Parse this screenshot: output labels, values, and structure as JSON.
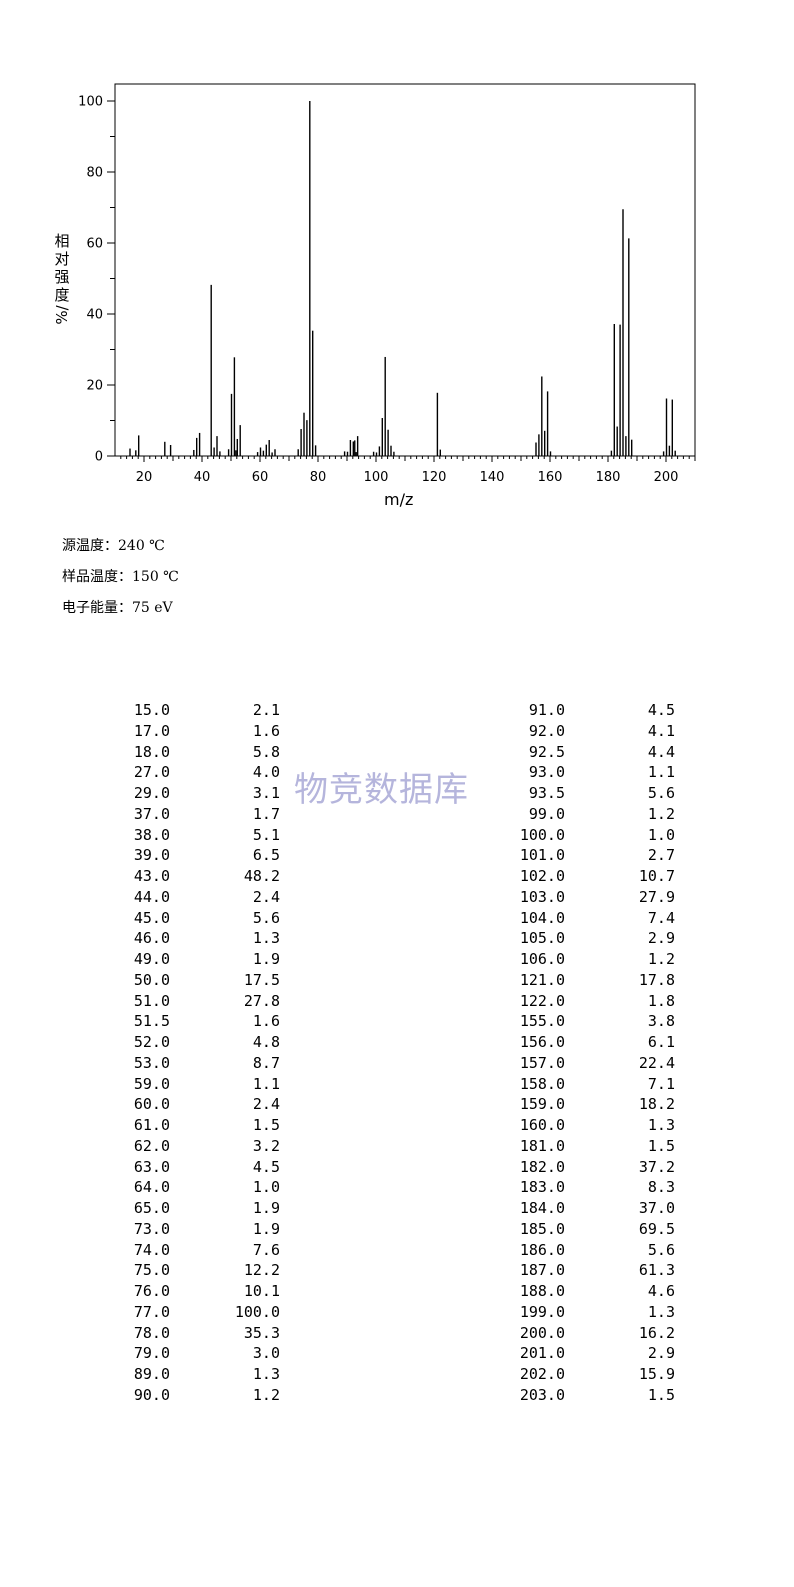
{
  "chart_data": {
    "type": "bar",
    "xlabel": "m/z",
    "ylabel_chars": [
      "相",
      "对",
      "强",
      "度"
    ],
    "ylabel_unit": "%/",
    "xlim": [
      10,
      210
    ],
    "ylim": [
      0,
      100
    ],
    "xticks": [
      "20",
      "40",
      "60",
      "80",
      "100",
      "120",
      "140",
      "160",
      "180",
      "200"
    ],
    "yticks": [
      "0",
      "20",
      "40",
      "60",
      "80",
      "100"
    ],
    "x": [
      15.0,
      17.0,
      18.0,
      27.0,
      29.0,
      37.0,
      38.0,
      39.0,
      43.0,
      44.0,
      45.0,
      46.0,
      49.0,
      50.0,
      51.0,
      51.5,
      52.0,
      53.0,
      59.0,
      60.0,
      61.0,
      62.0,
      63.0,
      64.0,
      65.0,
      73.0,
      74.0,
      75.0,
      76.0,
      77.0,
      78.0,
      79.0,
      89.0,
      90.0,
      91.0,
      92.0,
      92.5,
      93.0,
      93.5,
      99.0,
      100.0,
      101.0,
      102.0,
      103.0,
      104.0,
      105.0,
      106.0,
      121.0,
      122.0,
      155.0,
      156.0,
      157.0,
      158.0,
      159.0,
      160.0,
      181.0,
      182.0,
      183.0,
      184.0,
      185.0,
      186.0,
      187.0,
      188.0,
      199.0,
      200.0,
      201.0,
      202.0,
      203.0
    ],
    "values": [
      2.1,
      1.6,
      5.8,
      4.0,
      3.1,
      1.7,
      5.1,
      6.5,
      48.2,
      2.4,
      5.6,
      1.3,
      1.9,
      17.5,
      27.8,
      1.6,
      4.8,
      8.7,
      1.1,
      2.4,
      1.5,
      3.2,
      4.5,
      1.0,
      1.9,
      1.9,
      7.6,
      12.2,
      10.1,
      100.0,
      35.3,
      3.0,
      1.3,
      1.2,
      4.5,
      4.1,
      4.4,
      1.1,
      5.6,
      1.2,
      1.0,
      2.7,
      10.7,
      27.9,
      7.4,
      2.9,
      1.2,
      17.8,
      1.8,
      3.8,
      6.1,
      22.4,
      7.1,
      18.2,
      1.3,
      1.5,
      37.2,
      8.3,
      37.0,
      69.5,
      5.6,
      61.3,
      4.6,
      1.3,
      16.2,
      2.9,
      15.9,
      1.5
    ]
  },
  "conditions": [
    {
      "label": "源温度：",
      "value": "240  ℃"
    },
    {
      "label": "样品温度：",
      "value": "150 ℃"
    },
    {
      "label": "电子能量：",
      "value": "75 eV"
    }
  ],
  "watermark": "物竞数据库",
  "peak_table": {
    "left": [
      [
        "15.0",
        "2.1"
      ],
      [
        "17.0",
        "1.6"
      ],
      [
        "18.0",
        "5.8"
      ],
      [
        "27.0",
        "4.0"
      ],
      [
        "29.0",
        "3.1"
      ],
      [
        "37.0",
        "1.7"
      ],
      [
        "38.0",
        "5.1"
      ],
      [
        "39.0",
        "6.5"
      ],
      [
        "43.0",
        "48.2"
      ],
      [
        "44.0",
        "2.4"
      ],
      [
        "45.0",
        "5.6"
      ],
      [
        "46.0",
        "1.3"
      ],
      [
        "49.0",
        "1.9"
      ],
      [
        "50.0",
        "17.5"
      ],
      [
        "51.0",
        "27.8"
      ],
      [
        "51.5",
        "1.6"
      ],
      [
        "52.0",
        "4.8"
      ],
      [
        "53.0",
        "8.7"
      ],
      [
        "59.0",
        "1.1"
      ],
      [
        "60.0",
        "2.4"
      ],
      [
        "61.0",
        "1.5"
      ],
      [
        "62.0",
        "3.2"
      ],
      [
        "63.0",
        "4.5"
      ],
      [
        "64.0",
        "1.0"
      ],
      [
        "65.0",
        "1.9"
      ],
      [
        "73.0",
        "1.9"
      ],
      [
        "74.0",
        "7.6"
      ],
      [
        "75.0",
        "12.2"
      ],
      [
        "76.0",
        "10.1"
      ],
      [
        "77.0",
        "100.0"
      ],
      [
        "78.0",
        "35.3"
      ],
      [
        "79.0",
        "3.0"
      ],
      [
        "89.0",
        "1.3"
      ],
      [
        "90.0",
        "1.2"
      ]
    ],
    "right": [
      [
        "91.0",
        "4.5"
      ],
      [
        "92.0",
        "4.1"
      ],
      [
        "92.5",
        "4.4"
      ],
      [
        "93.0",
        "1.1"
      ],
      [
        "93.5",
        "5.6"
      ],
      [
        "99.0",
        "1.2"
      ],
      [
        "100.0",
        "1.0"
      ],
      [
        "101.0",
        "2.7"
      ],
      [
        "102.0",
        "10.7"
      ],
      [
        "103.0",
        "27.9"
      ],
      [
        "104.0",
        "7.4"
      ],
      [
        "105.0",
        "2.9"
      ],
      [
        "106.0",
        "1.2"
      ],
      [
        "121.0",
        "17.8"
      ],
      [
        "122.0",
        "1.8"
      ],
      [
        "155.0",
        "3.8"
      ],
      [
        "156.0",
        "6.1"
      ],
      [
        "157.0",
        "22.4"
      ],
      [
        "158.0",
        "7.1"
      ],
      [
        "159.0",
        "18.2"
      ],
      [
        "160.0",
        "1.3"
      ],
      [
        "181.0",
        "1.5"
      ],
      [
        "182.0",
        "37.2"
      ],
      [
        "183.0",
        "8.3"
      ],
      [
        "184.0",
        "37.0"
      ],
      [
        "185.0",
        "69.5"
      ],
      [
        "186.0",
        "5.6"
      ],
      [
        "187.0",
        "61.3"
      ],
      [
        "188.0",
        "4.6"
      ],
      [
        "199.0",
        "1.3"
      ],
      [
        "200.0",
        "16.2"
      ],
      [
        "201.0",
        "2.9"
      ],
      [
        "202.0",
        "15.9"
      ],
      [
        "203.0",
        "1.5"
      ]
    ]
  }
}
